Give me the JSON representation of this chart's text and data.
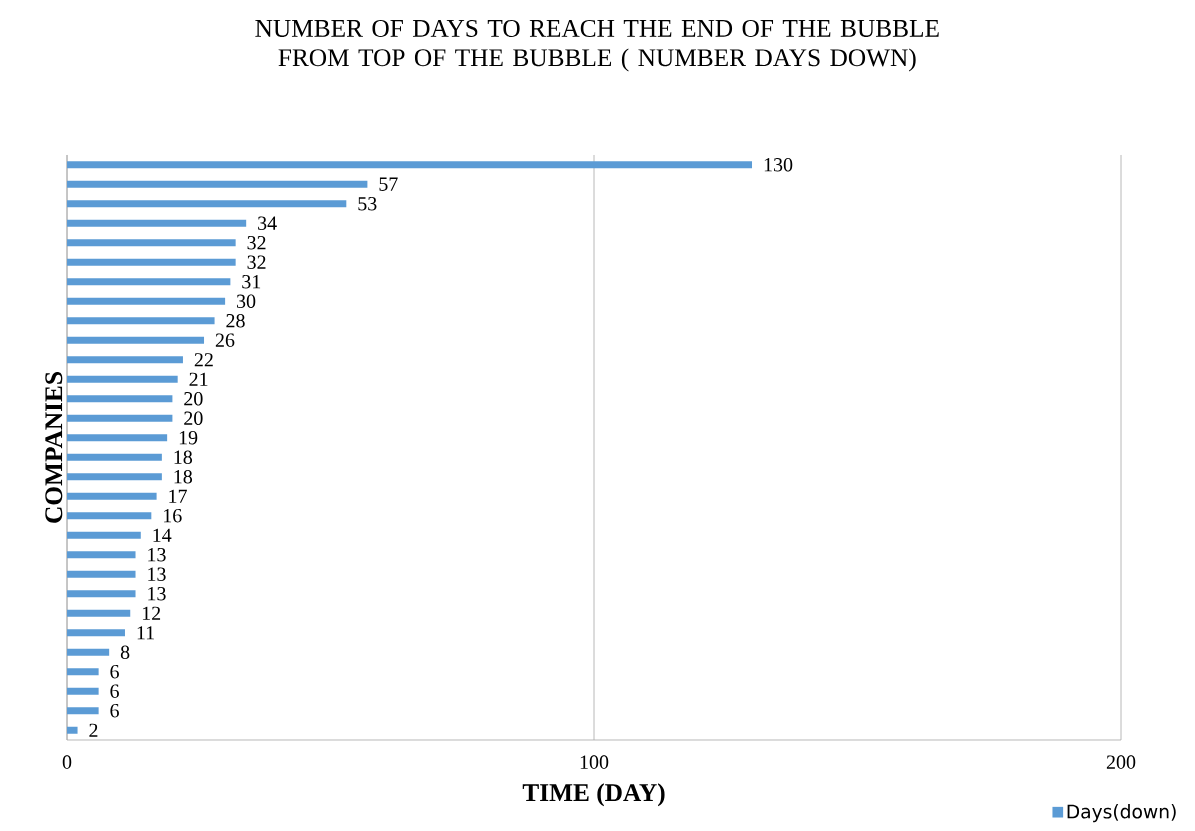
{
  "chart_data": {
    "type": "bar",
    "orientation": "horizontal",
    "title": "NUMBER OF DAYS TO REACH THE END OF THE BUBBLE FROM TOP OF THE BUBBLE ( NUMBER DAYS DOWN)",
    "xlabel": "TIME (DAY)",
    "ylabel": "COMPANIES",
    "categories": [
      null,
      null,
      null,
      null,
      null,
      null,
      null,
      null,
      null,
      null,
      null,
      null,
      null,
      null,
      null,
      null,
      null,
      null,
      null,
      null,
      null,
      null,
      null,
      null,
      null,
      null,
      null,
      null,
      null,
      null
    ],
    "series": [
      {
        "name": "Days(down)",
        "color": "#5b9bd5",
        "values": [
          130,
          57,
          53,
          34,
          32,
          32,
          31,
          30,
          28,
          26,
          22,
          21,
          20,
          20,
          19,
          18,
          18,
          17,
          16,
          14,
          13,
          13,
          13,
          12,
          11,
          8,
          6,
          6,
          6,
          2
        ]
      }
    ],
    "xlim": [
      0,
      200
    ],
    "xticks": [
      0,
      100,
      200
    ],
    "grid": "x",
    "data_labels": true,
    "legend": "bottom right"
  }
}
